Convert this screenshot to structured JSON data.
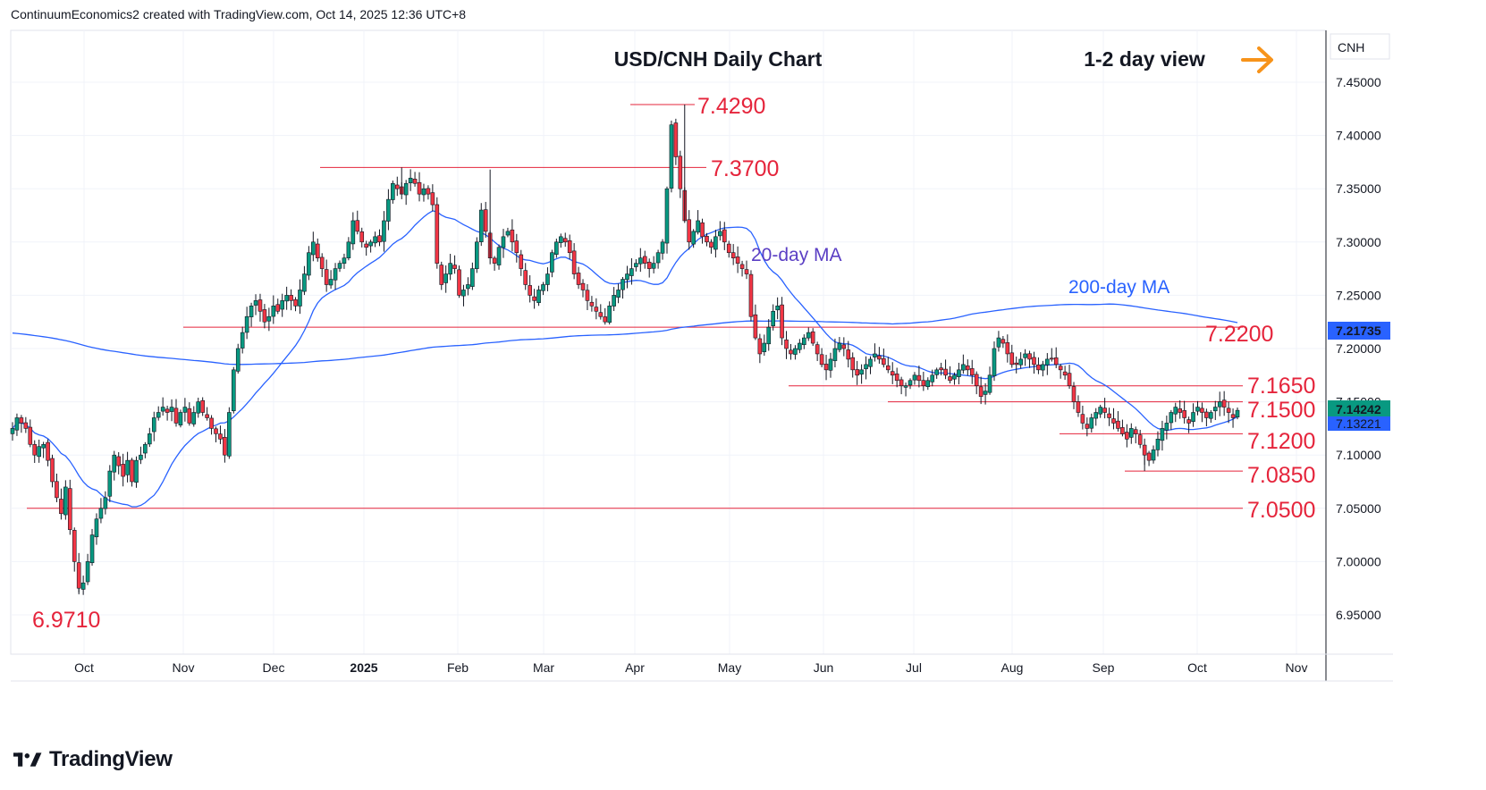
{
  "header": {
    "text": "ContinuumEconomics2 created with TradingView.com, Oct 14, 2025 12:36 UTC+8"
  },
  "brand": {
    "name": "TradingView"
  },
  "colors": {
    "up": "#089981",
    "down": "#f23645",
    "ma20": "#2962ff",
    "ma200": "#2962ff",
    "level": "#e5243b",
    "arrow": "#f7931a",
    "ma_label": "#5b3fc4"
  },
  "chart_data": {
    "type": "candlestick",
    "title": "USD/CNH Daily Chart",
    "view_label": "1-2 day view",
    "view_icon": "arrow-right-icon",
    "symbol": "CNH",
    "last_price": "7.14242",
    "ma_price": "7.13221",
    "ma200_price": "7.21735",
    "ylim": [
      6.915,
      7.48
    ],
    "y_ticks": [
      "7.45000",
      "7.40000",
      "7.35000",
      "7.30000",
      "7.25000",
      "7.20000",
      "7.15000",
      "7.10000",
      "7.05000",
      "7.00000",
      "6.95000"
    ],
    "x_ticks": [
      "Oct",
      "Nov",
      "Dec",
      "2025",
      "Feb",
      "Mar",
      "Apr",
      "May",
      "Jun",
      "Jul",
      "Aug",
      "Sep",
      "Oct",
      "Nov"
    ],
    "levels": [
      {
        "value": 7.429,
        "label": "7.4290"
      },
      {
        "value": 7.37,
        "label": "7.3700"
      },
      {
        "value": 7.22,
        "label": "7.2200"
      },
      {
        "value": 7.165,
        "label": "7.1650"
      },
      {
        "value": 7.15,
        "label": "7.1500"
      },
      {
        "value": 7.12,
        "label": "7.1200"
      },
      {
        "value": 7.085,
        "label": "7.0850"
      },
      {
        "value": 7.05,
        "label": "7.0500"
      },
      {
        "value": 6.971,
        "label": "6.9710"
      }
    ],
    "ma_labels": {
      "ma20": "20-day MA",
      "ma200": "200-day MA"
    },
    "closes": [
      7.125,
      7.135,
      7.13,
      7.125,
      7.11,
      7.1,
      7.108,
      7.11,
      7.095,
      7.075,
      7.06,
      7.045,
      7.07,
      7.03,
      7.0,
      6.975,
      6.98,
      7.0,
      7.025,
      7.04,
      7.05,
      7.06,
      7.085,
      7.1,
      7.09,
      7.08,
      7.095,
      7.075,
      7.095,
      7.1,
      7.11,
      7.12,
      7.135,
      7.14,
      7.145,
      7.14,
      7.145,
      7.13,
      7.14,
      7.145,
      7.13,
      7.14,
      7.15,
      7.14,
      7.135,
      7.125,
      7.12,
      7.115,
      7.1,
      7.14,
      7.18,
      7.2,
      7.215,
      7.23,
      7.24,
      7.245,
      7.235,
      7.225,
      7.23,
      7.24,
      7.235,
      7.245,
      7.25,
      7.245,
      7.24,
      7.255,
      7.27,
      7.29,
      7.3,
      7.285,
      7.275,
      7.26,
      7.265,
      7.275,
      7.28,
      7.285,
      7.3,
      7.32,
      7.31,
      7.3,
      7.295,
      7.3,
      7.305,
      7.3,
      7.32,
      7.34,
      7.355,
      7.35,
      7.345,
      7.355,
      7.36,
      7.355,
      7.345,
      7.35,
      7.345,
      7.335,
      7.28,
      7.26,
      7.27,
      7.28,
      7.275,
      7.25,
      7.255,
      7.26,
      7.275,
      7.3,
      7.33,
      7.31,
      7.285,
      7.28,
      7.295,
      7.305,
      7.31,
      7.3,
      7.29,
      7.275,
      7.26,
      7.25,
      7.245,
      7.255,
      7.26,
      7.27,
      7.29,
      7.3,
      7.305,
      7.3,
      7.29,
      7.27,
      7.26,
      7.255,
      7.245,
      7.24,
      7.235,
      7.23,
      7.225,
      7.24,
      7.25,
      7.255,
      7.265,
      7.27,
      7.275,
      7.28,
      7.285,
      7.28,
      7.275,
      7.28,
      7.29,
      7.3,
      7.35,
      7.41,
      7.38,
      7.35,
      7.32,
      7.3,
      7.31,
      7.32,
      7.305,
      7.3,
      7.295,
      7.305,
      7.31,
      7.3,
      7.29,
      7.285,
      7.28,
      7.275,
      7.27,
      7.23,
      7.21,
      7.195,
      7.205,
      7.22,
      7.235,
      7.24,
      7.21,
      7.2,
      7.195,
      7.2,
      7.205,
      7.21,
      7.215,
      7.205,
      7.195,
      7.185,
      7.18,
      7.19,
      7.2,
      7.205,
      7.2,
      7.19,
      7.18,
      7.175,
      7.18,
      7.185,
      7.19,
      7.195,
      7.19,
      7.185,
      7.18,
      7.175,
      7.17,
      7.165,
      7.165,
      7.17,
      7.175,
      7.17,
      7.165,
      7.17,
      7.175,
      7.18,
      7.18,
      7.175,
      7.17,
      7.175,
      7.18,
      7.185,
      7.18,
      7.175,
      7.165,
      7.155,
      7.16,
      7.175,
      7.2,
      7.21,
      7.205,
      7.195,
      7.185,
      7.185,
      7.19,
      7.195,
      7.19,
      7.185,
      7.18,
      7.185,
      7.19,
      7.19,
      7.185,
      7.18,
      7.175,
      7.165,
      7.15,
      7.14,
      7.13,
      7.125,
      7.135,
      7.14,
      7.145,
      7.14,
      7.135,
      7.13,
      7.125,
      7.12,
      7.115,
      7.125,
      7.12,
      7.11,
      7.1,
      7.095,
      7.105,
      7.115,
      7.125,
      7.13,
      7.14,
      7.145,
      7.14,
      7.135,
      7.13,
      7.14,
      7.145,
      7.14,
      7.135,
      7.14,
      7.145,
      7.15,
      7.145,
      7.14,
      7.135,
      7.142
    ]
  }
}
